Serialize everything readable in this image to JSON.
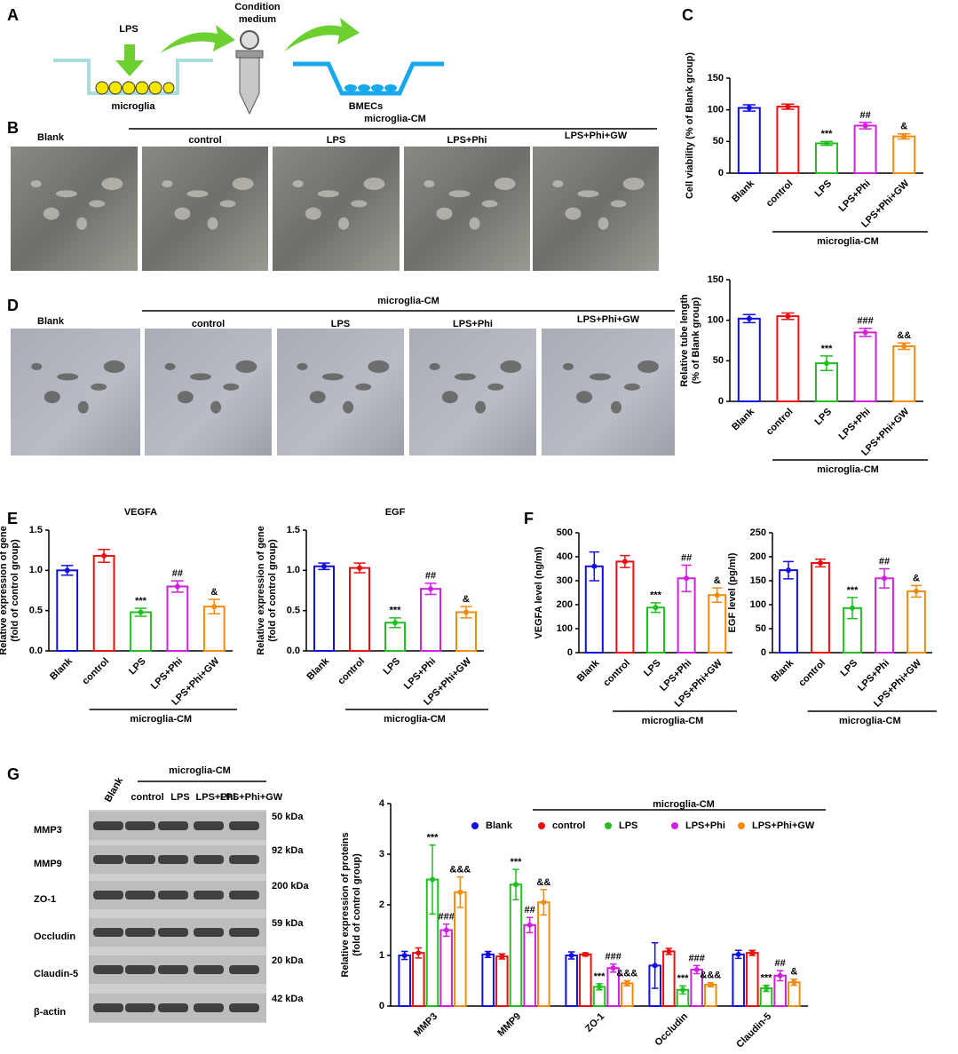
{
  "panel_labels": [
    "A",
    "B",
    "C",
    "D",
    "E",
    "F",
    "G"
  ],
  "diagram": {
    "stimulus": "LPS",
    "medium": [
      "Condition",
      "medium"
    ],
    "cells": "microglia",
    "target": "BMECs"
  },
  "micrographs_b": {
    "group_label": "microglia-CM",
    "labels": [
      "Blank",
      "control",
      "LPS",
      "LPS+Phi",
      "LPS+Phi+GW"
    ]
  },
  "micrographs_d": {
    "group_label": "microglia-CM",
    "labels": [
      "Blank",
      "control",
      "LPS",
      "LPS+Phi",
      "LPS+Phi+GW"
    ]
  },
  "blot": {
    "group_label": "microglia-CM",
    "lanes": [
      "Blank",
      "control",
      "LPS",
      "LPS+Phi",
      "LPS+Phi+GW"
    ],
    "rows": [
      {
        "protein": "MMP3",
        "size": "50 kDa"
      },
      {
        "protein": "MMP9",
        "size": "92 kDa"
      },
      {
        "protein": "ZO-1",
        "size": "200 kDa"
      },
      {
        "protein": "Occludin",
        "size": "59 kDa"
      },
      {
        "protein": "Claudin-5",
        "size": "20 kDa"
      },
      {
        "protein": "β-actin",
        "size": "42 kDa"
      }
    ]
  },
  "chart_data": [
    {
      "type": "bar",
      "ylabel": [
        "Cell viability (% of Blank group)"
      ],
      "categories": [
        "Blank",
        "control",
        "LPS",
        "LPS+Phi",
        "LPS+Phi+GW"
      ],
      "values": [
        103,
        105,
        47,
        75,
        58
      ],
      "errors": [
        5,
        4,
        3,
        5,
        4
      ],
      "annotations": [
        null,
        null,
        "***",
        "##",
        "&"
      ],
      "colors": [
        "#1010e0",
        "#e81010",
        "#20c020",
        "#d020e0",
        "#f08c10"
      ],
      "ylim": [
        0,
        150
      ],
      "yticks": [
        0,
        50,
        100,
        150
      ],
      "group_label": "microglia-CM"
    },
    {
      "type": "bar",
      "ylabel": [
        "Relative tube length",
        "(% of Blank group)"
      ],
      "categories": [
        "Blank",
        "control",
        "LPS",
        "LPS+Phi",
        "LPS+Phi+GW"
      ],
      "values": [
        102,
        105,
        47,
        85,
        68
      ],
      "errors": [
        5,
        4,
        9,
        5,
        4
      ],
      "annotations": [
        null,
        null,
        "***",
        "###",
        "&&"
      ],
      "colors": [
        "#1010e0",
        "#e81010",
        "#20c020",
        "#d020e0",
        "#f08c10"
      ],
      "ylim": [
        0,
        150
      ],
      "yticks": [
        0,
        50,
        100,
        150
      ],
      "group_label": "microglia-CM"
    },
    {
      "type": "bar",
      "title": "VEGFA",
      "ylabel": [
        "Relative expression of gene",
        "(fold of control group)"
      ],
      "categories": [
        "Blank",
        "control",
        "LPS",
        "LPS+Phi",
        "LPS+Phi+GW"
      ],
      "values": [
        1.0,
        1.18,
        0.48,
        0.8,
        0.55
      ],
      "errors": [
        0.06,
        0.08,
        0.05,
        0.07,
        0.09
      ],
      "annotations": [
        null,
        null,
        "***",
        "##",
        "&"
      ],
      "colors": [
        "#1010e0",
        "#e81010",
        "#20c020",
        "#d020e0",
        "#f08c10"
      ],
      "ylim": [
        0,
        1.5
      ],
      "yticks": [
        {
          "value": 0,
          "label": "0.0"
        },
        0.5,
        {
          "value": 1,
          "label": "1.0"
        },
        1.5
      ],
      "group_label": "microglia-CM"
    },
    {
      "type": "bar",
      "title": "EGF",
      "ylabel": [
        "Relative expression of gene",
        "(fold of control group)"
      ],
      "categories": [
        "Blank",
        "control",
        "LPS",
        "LPS+Phi",
        "LPS+Phi+GW"
      ],
      "values": [
        1.05,
        1.03,
        0.35,
        0.77,
        0.48
      ],
      "errors": [
        0.04,
        0.06,
        0.06,
        0.07,
        0.07
      ],
      "annotations": [
        null,
        null,
        "***",
        "##",
        "&"
      ],
      "colors": [
        "#1010e0",
        "#e81010",
        "#20c020",
        "#d020e0",
        "#f08c10"
      ],
      "ylim": [
        0,
        1.5
      ],
      "yticks": [
        {
          "value": 0,
          "label": "0.0"
        },
        0.5,
        {
          "value": 1,
          "label": "1.0"
        },
        1.5
      ],
      "group_label": "microglia-CM"
    },
    {
      "type": "bar",
      "ylabel": [
        "VEGFA level  (ng/ml)"
      ],
      "categories": [
        "Blank",
        "control",
        "LPS",
        "LPS+Phi",
        "LPS+Phi+GW"
      ],
      "values": [
        360,
        380,
        188,
        310,
        240
      ],
      "errors": [
        60,
        25,
        20,
        55,
        30
      ],
      "annotations": [
        null,
        null,
        "***",
        "##",
        "&"
      ],
      "colors": [
        "#1010e0",
        "#e81010",
        "#20c020",
        "#d020e0",
        "#f08c10"
      ],
      "ylim": [
        0,
        500
      ],
      "yticks": [
        0,
        100,
        200,
        300,
        400,
        500
      ],
      "group_label": "microglia-CM"
    },
    {
      "type": "bar",
      "ylabel": [
        "EGF level  (pg/ml)"
      ],
      "categories": [
        "Blank",
        "control",
        "LPS",
        "LPS+Phi",
        "LPS+Phi+GW"
      ],
      "values": [
        172,
        187,
        93,
        155,
        128
      ],
      "errors": [
        18,
        8,
        22,
        20,
        12
      ],
      "annotations": [
        null,
        null,
        "***",
        "##",
        "&"
      ],
      "colors": [
        "#1010e0",
        "#e81010",
        "#20c020",
        "#d020e0",
        "#f08c10"
      ],
      "ylim": [
        0,
        250
      ],
      "yticks": [
        0,
        50,
        100,
        150,
        200,
        250
      ],
      "group_label": "microglia-CM"
    },
    {
      "type": "bar",
      "ylabel": [
        "Relative expression of proteins",
        "(fold of control group)"
      ],
      "categories": [
        "MMP3",
        "MMP9",
        "ZO-1",
        "Occludin",
        "Claudin-5"
      ],
      "series": [
        {
          "name": "Blank",
          "color": "#1010e0",
          "values": [
            1.0,
            1.02,
            1.0,
            0.8,
            1.02
          ],
          "errors": [
            0.08,
            0.06,
            0.07,
            0.45,
            0.08
          ],
          "annotations": [
            null,
            null,
            null,
            null,
            null
          ]
        },
        {
          "name": "control",
          "color": "#e81010",
          "values": [
            1.05,
            0.98,
            1.02,
            1.08,
            1.05
          ],
          "errors": [
            0.1,
            0.05,
            0.03,
            0.06,
            0.05
          ],
          "annotations": [
            null,
            null,
            null,
            null,
            null
          ]
        },
        {
          "name": "LPS",
          "color": "#20c020",
          "values": [
            2.5,
            2.4,
            0.38,
            0.32,
            0.35
          ],
          "errors": [
            0.68,
            0.3,
            0.06,
            0.08,
            0.06
          ],
          "annotations": [
            "***",
            "***",
            "***",
            "***",
            "***"
          ]
        },
        {
          "name": "LPS+Phi",
          "color": "#d020e0",
          "values": [
            1.5,
            1.6,
            0.75,
            0.72,
            0.6
          ],
          "errors": [
            0.12,
            0.15,
            0.08,
            0.08,
            0.1
          ],
          "annotations": [
            "###",
            "##",
            "###",
            "###",
            "##"
          ]
        },
        {
          "name": "LPS+Phi+GW",
          "color": "#f08c10",
          "values": [
            2.25,
            2.05,
            0.45,
            0.42,
            0.47
          ],
          "errors": [
            0.3,
            0.25,
            0.05,
            0.04,
            0.06
          ],
          "annotations": [
            "&&&",
            "&&",
            "&&&",
            "&&&",
            "&"
          ]
        }
      ],
      "ylim": [
        0,
        4
      ],
      "yticks": [
        0,
        1,
        2,
        3,
        4
      ],
      "group_label": "microglia-CM"
    }
  ]
}
